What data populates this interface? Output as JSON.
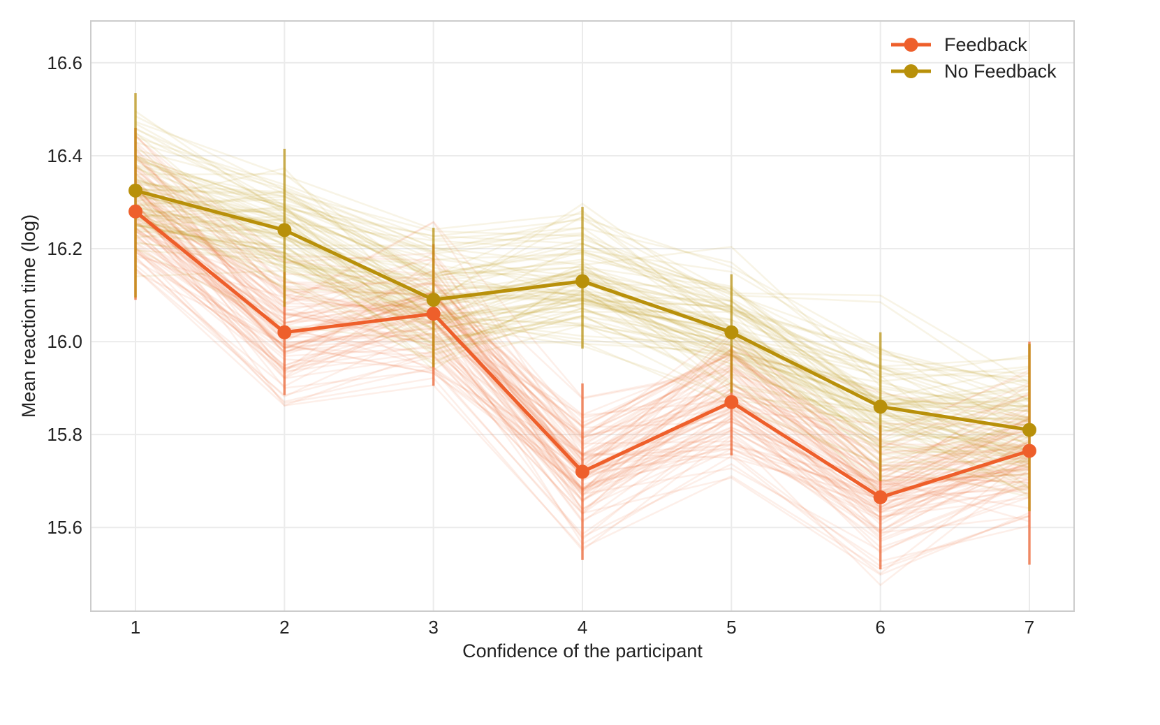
{
  "chart_data": {
    "type": "line",
    "title": "",
    "xlabel": "Confidence of the participant",
    "ylabel": "Mean reaction time (log)",
    "x": [
      1,
      2,
      3,
      4,
      5,
      6,
      7
    ],
    "x_tick_labels": [
      "1",
      "2",
      "3",
      "4",
      "5",
      "6",
      "7"
    ],
    "y_ticks": [
      15.6,
      15.8,
      16.0,
      16.2,
      16.4,
      16.6
    ],
    "y_tick_labels": [
      "15.6",
      "15.8",
      "16.0",
      "16.2",
      "16.4",
      "16.6"
    ],
    "xlim": [
      0.7,
      7.3
    ],
    "ylim": [
      15.42,
      16.69
    ],
    "grid": true,
    "legend_position": "top-right",
    "series": [
      {
        "name": "Feedback",
        "color": "#EE5F2B",
        "values": [
          16.28,
          16.02,
          16.06,
          15.72,
          15.87,
          15.665,
          15.765
        ],
        "error_low": [
          16.09,
          15.885,
          15.905,
          15.53,
          15.755,
          15.51,
          15.52
        ],
        "error_high": [
          16.46,
          16.15,
          16.21,
          15.91,
          15.99,
          15.82,
          16.0
        ]
      },
      {
        "name": "No Feedback",
        "color": "#B8900A",
        "values": [
          16.325,
          16.24,
          16.09,
          16.13,
          16.02,
          15.86,
          15.81
        ],
        "error_low": [
          16.095,
          16.075,
          15.945,
          15.985,
          15.89,
          15.7,
          15.635
        ],
        "error_high": [
          16.535,
          16.415,
          16.245,
          16.29,
          16.145,
          16.02,
          15.995
        ]
      }
    ],
    "background_samples": {
      "note": "many faint individual posterior-sample lines drawn around each series mean",
      "count_per_series": 90,
      "spread": 0.09
    }
  }
}
